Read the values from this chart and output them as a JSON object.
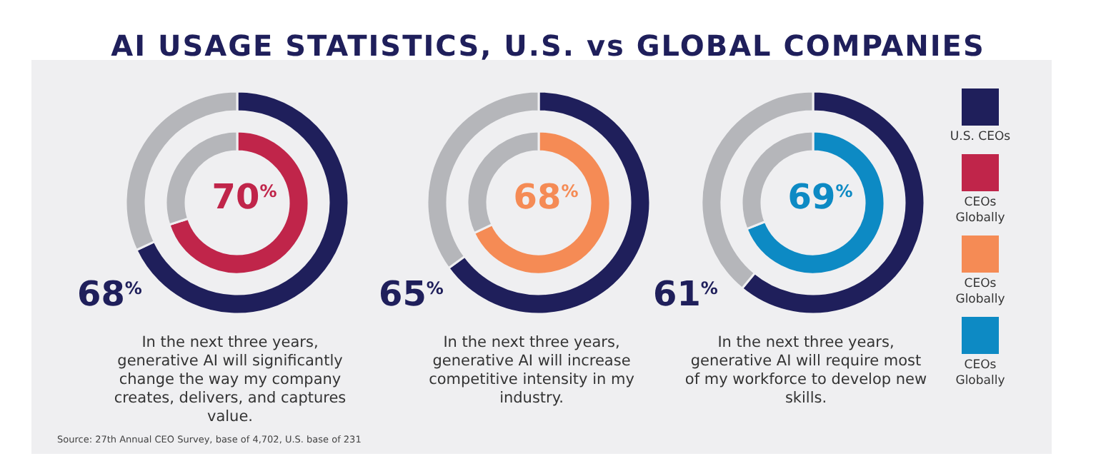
{
  "chart_data": [
    {
      "type": "donut",
      "title": "AI USAGE STATISTICS, U.S. vs GLOBAL COMPANIES",
      "categories": [
        null,
        null
      ],
      "legend": "right",
      "series": [
        {
          "name": "U.S. CEOs",
          "colors": [
            "#1f1f5b",
            "#b5b6ba"
          ],
          "values": [
            68,
            32
          ],
          "value_labels": [
            "68$^{%}$",
            null
          ]
        },
        {
          "name": "CEOs Globally",
          "colors": [
            "#c0254a",
            "#b5b6ba"
          ],
          "values": [
            70,
            30
          ],
          "value_labels": [
            "70$^{%}$",
            null
          ]
        }
      ],
      "annotations": [
        "In the next three years, generative AI will significantly change the way my company creates, delivers, and captures value."
      ]
    },
    {
      "type": "donut",
      "categories": [
        null,
        null
      ],
      "legend": "right",
      "series": [
        {
          "colors": [
            "#1f1f5b",
            "#b5b6ba"
          ],
          "values": [
            65,
            35
          ],
          "value_labels": [
            "65$^{%}$",
            null
          ]
        },
        {
          "name": "CEOs Globally",
          "colors": [
            "#f58b55",
            "#b5b6ba"
          ],
          "values": [
            68,
            32
          ],
          "value_labels": [
            "68$^{%}$",
            null
          ]
        }
      ],
      "annotations": [
        "In the next three years, generative AI will increase competitive intensity in my industry."
      ]
    },
    {
      "type": "donut",
      "categories": [
        null,
        null
      ],
      "legend": "right",
      "series": [
        {
          "colors": [
            "#1f1f5b",
            "#b5b6ba"
          ],
          "values": [
            61,
            39
          ],
          "value_labels": [
            "61$^{%}$",
            null
          ]
        },
        {
          "name": "CEOs Globally",
          "colors": [
            "#0d8ac4",
            "#b5b6ba"
          ],
          "values": [
            69,
            31
          ],
          "value_labels": [
            "69$^{%}$",
            null
          ]
        }
      ],
      "annotations": [
        "In the next three years, generative AI will require most of my workforce to develop new skills.",
        "Source: 27th Annual CEO Survey, base of 4,702, U.S. base of 231"
      ]
    }
  ]
}
